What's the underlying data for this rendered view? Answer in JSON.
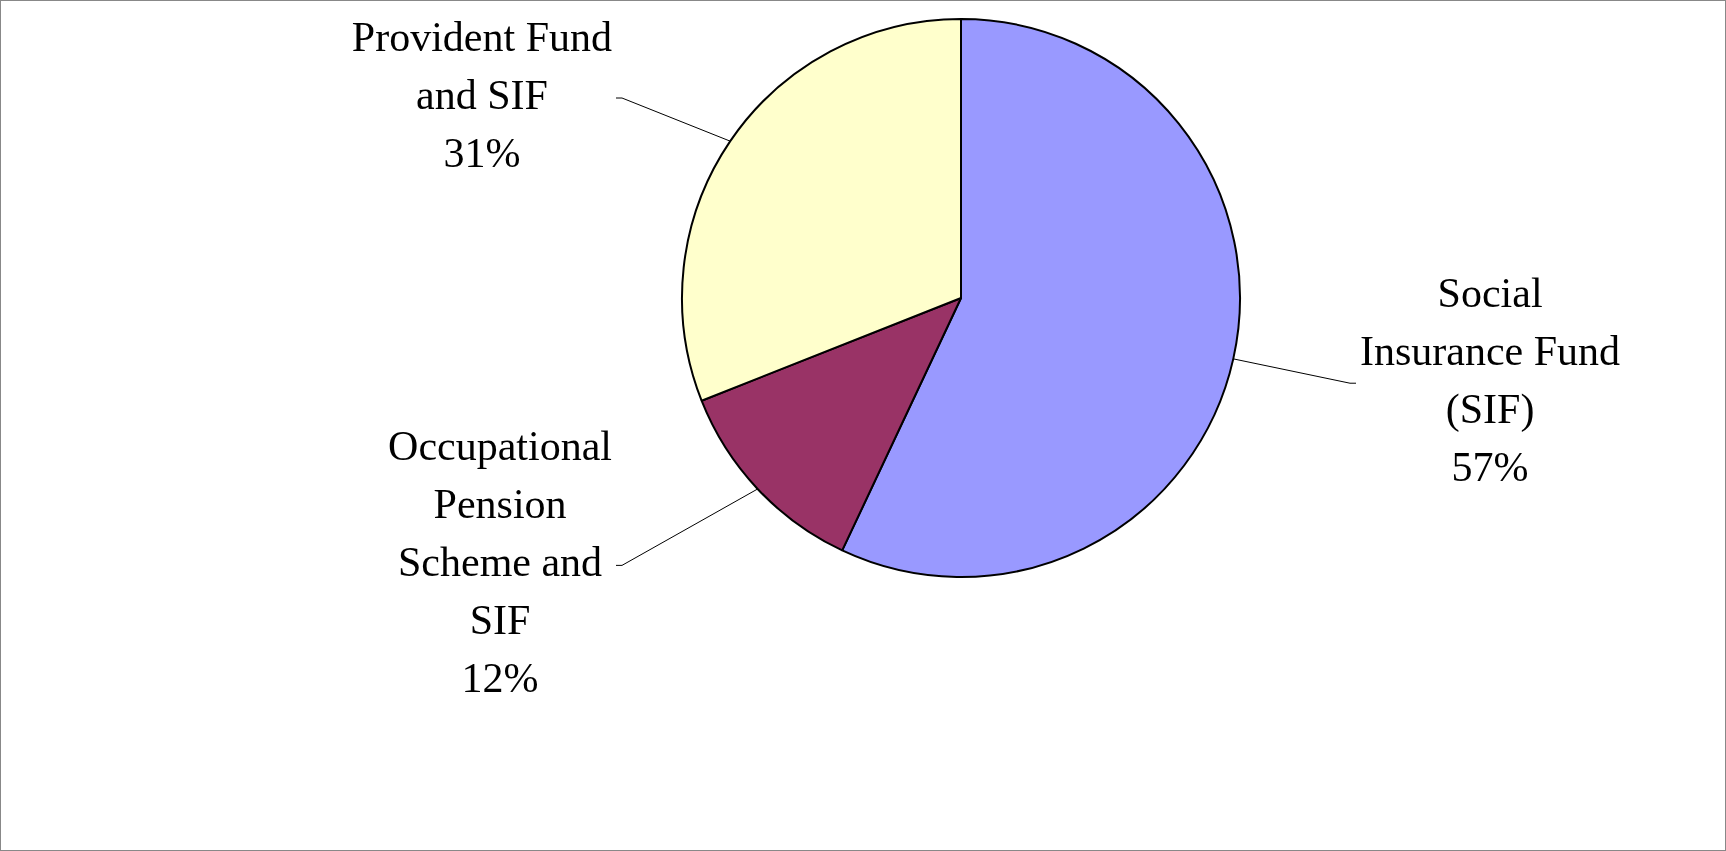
{
  "chart_data": {
    "type": "pie",
    "categories": [
      "Social Insurance Fund (SIF)",
      "Occupational Pension Scheme and SIF",
      "Provident Fund and SIF"
    ],
    "values": [
      57,
      12,
      31
    ],
    "colors": [
      "#9999ff",
      "#993366",
      "#ffffcc"
    ],
    "value_labels": [
      "57%",
      "12%",
      "31%"
    ],
    "legend": false
  }
}
